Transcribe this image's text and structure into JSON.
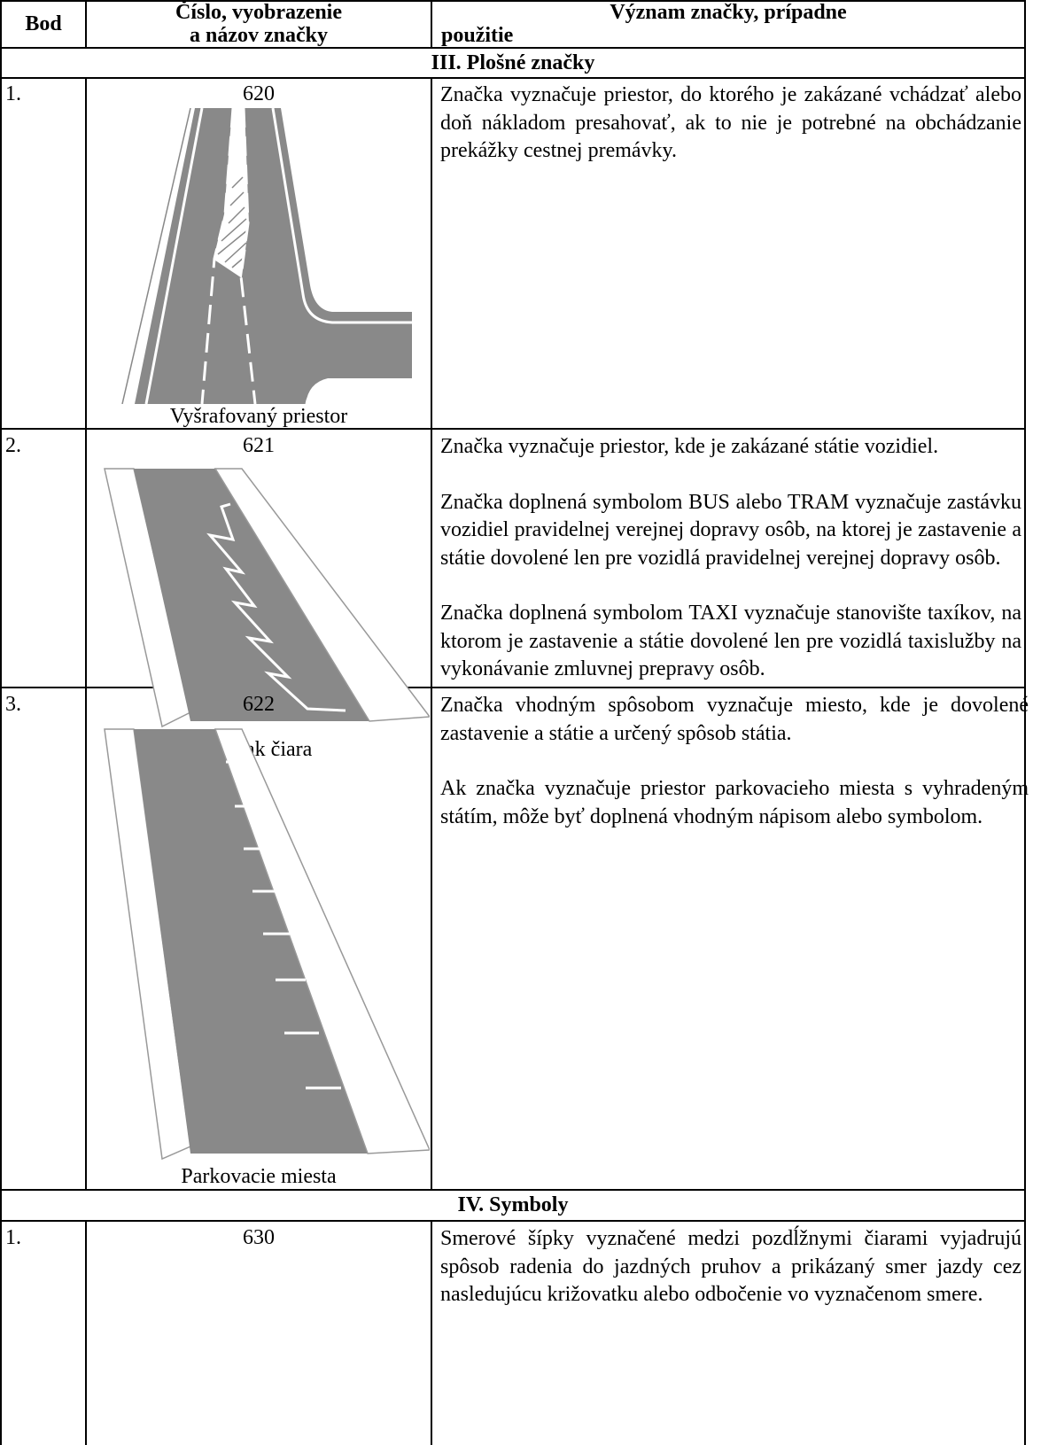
{
  "header": {
    "point": "Bod",
    "sign": [
      "Číslo, vyobrazenie",
      "a názov značky"
    ],
    "meaning": [
      "Význam značky, prípadne",
      "použitie"
    ]
  },
  "sections": [
    {
      "title": "III. Plošné značky",
      "rows": [
        {
          "point": "1.",
          "number": "620",
          "name": "Vyšrafovaný priestor",
          "paragraphs": [
            "Značka vyznačuje priestor, do ktorého je zakázané vchádzať alebo doň nákladom presahovať, ak to nie je potrebné na obchádzanie prekážky cestnej premávky."
          ]
        },
        {
          "point": "2.",
          "number": "621",
          "name": "Cikcak čiara",
          "paragraphs": [
            "Značka vyznačuje priestor, kde je zakázané státie vozidiel.",
            "Značka doplnená symbolom BUS alebo TRAM vyznačuje zastávku vozidiel pravidelnej verejnej dopravy osôb, na ktorej je zastavenie a státie dovolené len pre vozidlá pravidelnej verejnej dopravy osôb.",
            "Značka doplnená symbolom TAXI vyznačuje stanovište taxíkov, na ktorom je zastavenie a státie dovolené len pre vozidlá taxislužby na vykonávanie zmluvnej prepravy osôb."
          ]
        },
        {
          "point": "3.",
          "number": "622",
          "name": "Parkovacie miesta",
          "paragraphs": [
            "Značka vhodným spôsobom vyznačuje miesto, kde je dovolené zastavenie a státie a určený spôsob státia.",
            "Ak značka vyznačuje priestor parkovacieho miesta s vyhradeným státím, môže byť doplnená vhodným nápisom alebo symbolom."
          ]
        }
      ]
    },
    {
      "title": "IV. Symboly",
      "rows": [
        {
          "point": "1.",
          "number": "630",
          "paragraphs": [
            "Smerové šípky vyznačené medzi pozdĺžnymi čiarami vyjadrujú spôsob radenia do jazdných pruhov a prikázaný smer jazdy cez nasledujúcu križovatku alebo odbočenie vo vyznačenom smere."
          ]
        }
      ]
    }
  ]
}
